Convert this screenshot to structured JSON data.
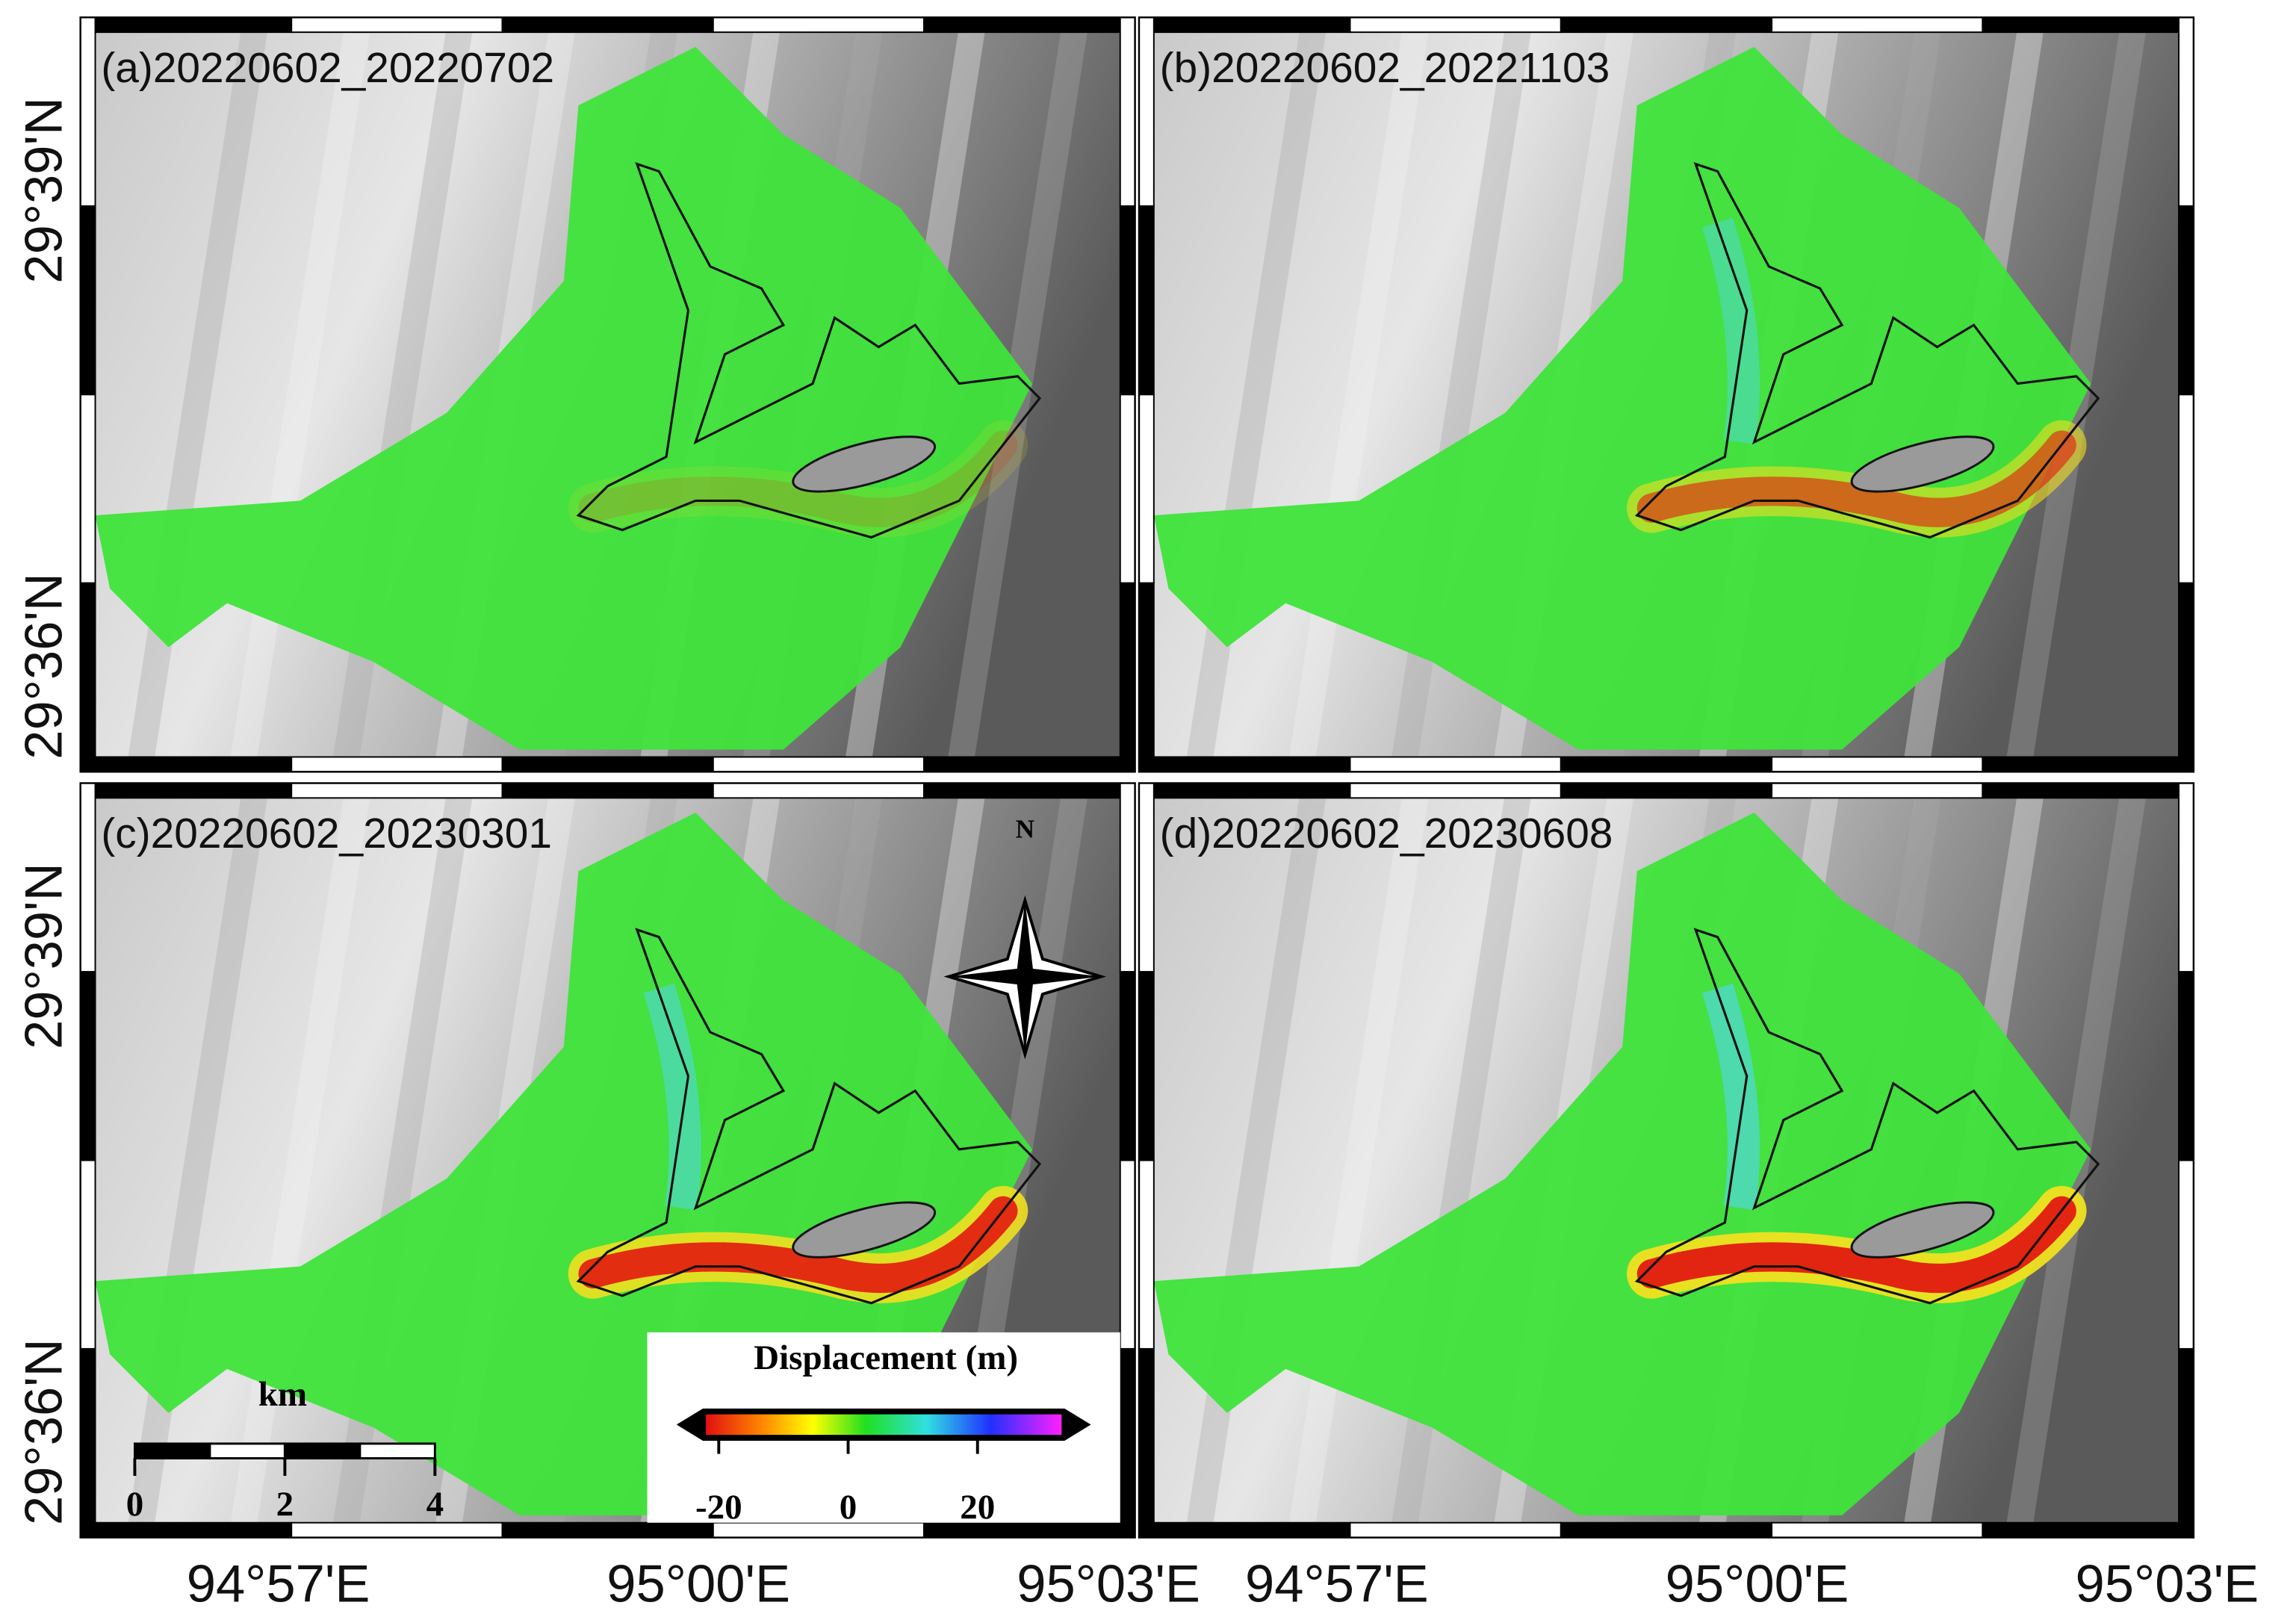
{
  "panels": [
    {
      "label": "(a)20220602_20220702"
    },
    {
      "label": "(b)20220602_20221103"
    },
    {
      "label": "(c)20220602_20230301"
    },
    {
      "label": "(d)20220602_20230608"
    }
  ],
  "lat_labels": [
    "29°39'N",
    "29°36'N"
  ],
  "lon_labels": [
    "94°57'E",
    "95°00'E",
    "95°03'E"
  ],
  "colorbar": {
    "title": "Displacement (m)",
    "lim": [
      -22,
      33
    ],
    "ticks": [
      -20,
      0,
      20
    ]
  },
  "scale_bar": {
    "unit": "km",
    "lim": [
      0,
      4
    ],
    "ticks": [
      0,
      2,
      4
    ]
  },
  "north": "N"
}
